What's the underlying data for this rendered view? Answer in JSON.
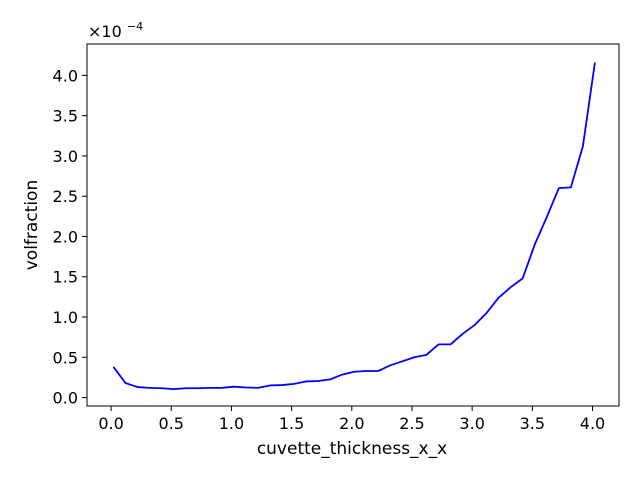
{
  "chart_data": {
    "type": "line",
    "title": "",
    "xlabel": "cuvette_thickness_x_x",
    "ylabel": "volfraction",
    "y_multiplier_base": "×10",
    "y_multiplier_exponent": "−4",
    "xlim": [
      -0.2,
      4.22
    ],
    "ylim": [
      -0.105,
      4.39
    ],
    "x_ticks": [
      0.0,
      0.5,
      1.0,
      1.5,
      2.0,
      2.5,
      3.0,
      3.5,
      4.0
    ],
    "x_tick_labels": [
      "0.0",
      "0.5",
      "1.0",
      "1.5",
      "2.0",
      "2.5",
      "3.0",
      "3.5",
      "4.0"
    ],
    "y_ticks": [
      0.0,
      0.5,
      1.0,
      1.5,
      2.0,
      2.5,
      3.0,
      3.5,
      4.0
    ],
    "y_tick_labels": [
      "0.0",
      "0.5",
      "1.0",
      "1.5",
      "2.0",
      "2.5",
      "3.0",
      "3.5",
      "4.0"
    ],
    "grid": false,
    "series": [
      {
        "color": "#0000ff",
        "x": [
          0.02,
          0.12,
          0.22,
          0.32,
          0.42,
          0.52,
          0.62,
          0.72,
          0.82,
          0.92,
          1.02,
          1.12,
          1.22,
          1.32,
          1.42,
          1.52,
          1.62,
          1.72,
          1.82,
          1.92,
          2.02,
          2.12,
          2.22,
          2.32,
          2.42,
          2.52,
          2.62,
          2.72,
          2.82,
          2.92,
          3.02,
          3.12,
          3.22,
          3.32,
          3.42,
          3.52,
          3.62,
          3.72,
          3.82,
          3.92,
          4.02
        ],
        "y": [
          0.38,
          0.18,
          0.13,
          0.12,
          0.115,
          0.105,
          0.115,
          0.115,
          0.12,
          0.12,
          0.135,
          0.125,
          0.12,
          0.15,
          0.155,
          0.17,
          0.2,
          0.205,
          0.225,
          0.285,
          0.32,
          0.33,
          0.33,
          0.4,
          0.45,
          0.5,
          0.53,
          0.66,
          0.66,
          0.79,
          0.9,
          1.05,
          1.24,
          1.37,
          1.48,
          1.9,
          2.24,
          2.6,
          2.61,
          3.12,
          4.16
        ]
      }
    ]
  }
}
